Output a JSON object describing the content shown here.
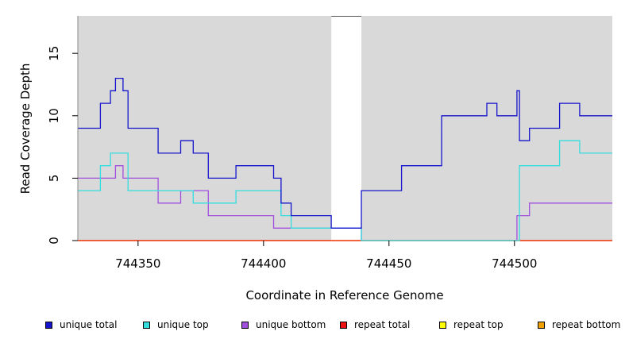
{
  "chart_data": {
    "type": "line",
    "line_shape": "step",
    "title": "",
    "xlabel": "Coordinate in Reference Genome",
    "ylabel": "Read Coverage Depth",
    "xlim": [
      744326,
      744539
    ],
    "ylim": [
      0,
      18
    ],
    "xticks": [
      744350,
      744400,
      744450,
      744500
    ],
    "yticks": [
      0,
      5,
      10,
      15
    ],
    "background": "#d9d9d9",
    "gap_region": [
      744427,
      744439
    ],
    "grid": false,
    "legend_position": "bottom",
    "series": [
      {
        "name": "unique total",
        "color": "#1515cc",
        "x": [
          744326,
          744335,
          744339,
          744341,
          744344,
          744346,
          744358,
          744367,
          744372,
          744378,
          744389,
          744404,
          744407,
          744411,
          744427,
          744439,
          744455,
          744471,
          744489,
          744493,
          744501,
          744502,
          744506,
          744518,
          744526,
          744539
        ],
        "y": [
          9,
          11,
          12,
          13,
          12,
          9,
          7,
          8,
          7,
          5,
          6,
          5,
          3,
          2,
          1,
          4,
          6,
          10,
          11,
          10,
          12,
          8,
          9,
          11,
          10,
          10
        ]
      },
      {
        "name": "unique top",
        "color": "#33dddd",
        "x": [
          744326,
          744335,
          744339,
          744346,
          744358,
          744372,
          744389,
          744407,
          744411,
          744427,
          744439,
          744502,
          744518,
          744526,
          744539
        ],
        "y": [
          4,
          6,
          7,
          4,
          4,
          3,
          4,
          2,
          1,
          1,
          0,
          6,
          8,
          7,
          7
        ]
      },
      {
        "name": "unique bottom",
        "color": "#a050dd",
        "x": [
          744326,
          744341,
          744344,
          744358,
          744367,
          744378,
          744404,
          744411,
          744427,
          744439,
          744501,
          744506,
          744539
        ],
        "y": [
          5,
          6,
          5,
          3,
          4,
          2,
          1,
          1,
          1,
          0,
          2,
          3,
          3
        ]
      },
      {
        "name": "repeat total",
        "color": "#ee1111",
        "x": [
          744326,
          744539
        ],
        "y": [
          0,
          0
        ]
      },
      {
        "name": "repeat top",
        "color": "#ffff00",
        "x": [
          744326,
          744539
        ],
        "y": [
          0,
          0
        ]
      },
      {
        "name": "repeat bottom",
        "color": "#f0a000",
        "x": [
          744326,
          744539
        ],
        "y": [
          0,
          0
        ]
      }
    ]
  }
}
